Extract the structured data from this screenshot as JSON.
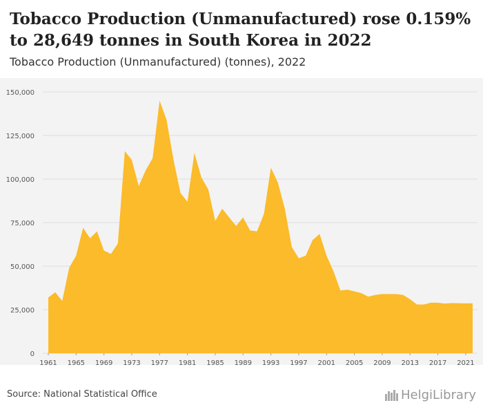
{
  "header": {
    "title": "Tobacco Production (Unmanufactured) rose 0.159% to 28,649 tonnes in South Korea in 2022",
    "subtitle": "Tobacco Production (Unmanufactured) (tonnes), 2022"
  },
  "footer": {
    "source": "Source: National Statistical Office",
    "brand": "HelgiLibrary"
  },
  "colors": {
    "area": "#fbbb2a",
    "grid": "#dddddd",
    "plot_bg": "#f3f3f3"
  },
  "chart_data": {
    "type": "area",
    "title": "Tobacco Production (Unmanufactured) (tonnes), 2022",
    "xlabel": "",
    "ylabel": "",
    "ylim": [
      0,
      150000
    ],
    "yticks": [
      0,
      25000,
      50000,
      75000,
      100000,
      125000,
      150000
    ],
    "ytick_labels": [
      "0",
      "25,000",
      "50,000",
      "75,000",
      "100,000",
      "125,000",
      "150,000"
    ],
    "xtick_labels": [
      "1961",
      "1965",
      "1969",
      "1973",
      "1977",
      "1981",
      "1985",
      "1989",
      "1993",
      "1997",
      "2001",
      "2005",
      "2009",
      "2013",
      "2017",
      "2021"
    ],
    "x": [
      1961,
      1962,
      1963,
      1964,
      1965,
      1966,
      1967,
      1968,
      1969,
      1970,
      1971,
      1972,
      1973,
      1974,
      1975,
      1976,
      1977,
      1978,
      1979,
      1980,
      1981,
      1982,
      1983,
      1984,
      1985,
      1986,
      1987,
      1988,
      1989,
      1990,
      1991,
      1992,
      1993,
      1994,
      1995,
      1996,
      1997,
      1998,
      1999,
      2000,
      2001,
      2002,
      2003,
      2004,
      2005,
      2006,
      2007,
      2008,
      2009,
      2010,
      2011,
      2012,
      2013,
      2014,
      2015,
      2016,
      2017,
      2018,
      2019,
      2020,
      2021,
      2022
    ],
    "series": [
      {
        "name": "Tobacco Production (Unmanufactured)",
        "values": [
          32000,
          35000,
          30000,
          49000,
          56000,
          72000,
          66000,
          70000,
          59000,
          57000,
          63000,
          116000,
          111000,
          96000,
          105000,
          112000,
          145000,
          134000,
          111000,
          92000,
          87000,
          115000,
          101000,
          94000,
          76000,
          83000,
          78000,
          73000,
          78000,
          70500,
          70000,
          80000,
          106500,
          98000,
          83000,
          61000,
          54500,
          56000,
          65000,
          68500,
          56000,
          47000,
          36000,
          36500,
          35500,
          34500,
          32500,
          33500,
          34000,
          34000,
          34000,
          33500,
          31000,
          28000,
          28000,
          29000,
          29000,
          28500,
          28800,
          28700,
          28604,
          28649
        ]
      }
    ]
  }
}
